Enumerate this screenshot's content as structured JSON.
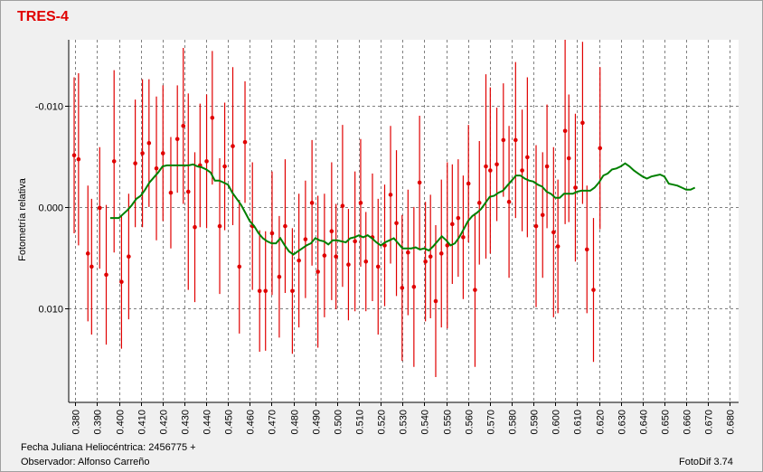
{
  "title": "TRES-4",
  "footer": {
    "xlabel": "Fecha Juliana Heliocéntrica: 2456775 +",
    "observer": "Observador: Alfonso Carreño",
    "software": "FotoDif 3.74"
  },
  "colors": {
    "points": "#e00000",
    "errorbars": "#e00000",
    "fit": "#008000",
    "title": "#e00000"
  },
  "chart_data": {
    "type": "scatter",
    "title": "TRES-4",
    "xlabel": "Fecha Juliana Heliocéntrica: 2456775 +",
    "ylabel": "Fotometría relativa",
    "xlim": [
      0.377,
      0.684
    ],
    "ylim": [
      -0.0165,
      0.0193
    ],
    "y_inverted": true,
    "grid": true,
    "xticks": [
      "0.380",
      "0.390",
      "0.400",
      "0.410",
      "0.420",
      "0.430",
      "0.440",
      "0.450",
      "0.460",
      "0.470",
      "0.480",
      "0.490",
      "0.500",
      "0.510",
      "0.520",
      "0.530",
      "0.540",
      "0.550",
      "0.560",
      "0.570",
      "0.580",
      "0.590",
      "0.600",
      "0.610",
      "0.620",
      "0.630",
      "0.640",
      "0.650",
      "0.660",
      "0.670",
      "0.680"
    ],
    "yticks": [
      "-0.010",
      "0.000",
      "0.010"
    ],
    "series": [
      {
        "values": [
          [
            0.3795,
            -0.0051,
            0.0077
          ],
          [
            0.3815,
            -0.0047,
            0.0085
          ],
          [
            0.3858,
            0.0046,
            0.0067
          ],
          [
            0.3875,
            0.0059,
            0.0067
          ],
          [
            0.3912,
            0.0001,
            0.006
          ],
          [
            0.3942,
            0.0067,
            0.0069
          ],
          [
            0.3978,
            -0.0045,
            0.009
          ],
          [
            0.4012,
            0.0074,
            0.0066
          ],
          [
            0.4045,
            0.0049,
            0.0062
          ],
          [
            0.4075,
            -0.0043,
            0.0063
          ],
          [
            0.4108,
            -0.0053,
            0.0073
          ],
          [
            0.4138,
            -0.0063,
            0.0063
          ],
          [
            0.4172,
            -0.0038,
            0.0071
          ],
          [
            0.4202,
            -0.0053,
            0.0067
          ],
          [
            0.4238,
            -0.0014,
            0.0055
          ],
          [
            0.4268,
            -0.0067,
            0.0053
          ],
          [
            0.4295,
            -0.008,
            0.0077
          ],
          [
            0.4318,
            -0.0015,
            0.0097
          ],
          [
            0.4348,
            0.002,
            0.0074
          ],
          [
            0.4372,
            -0.0041,
            0.0061
          ],
          [
            0.4402,
            -0.0045,
            0.0066
          ],
          [
            0.4428,
            -0.0088,
            0.0066
          ],
          [
            0.4462,
            0.0019,
            0.0067
          ],
          [
            0.4485,
            -0.004,
            0.0063
          ],
          [
            0.4522,
            -0.006,
            0.0078
          ],
          [
            0.4552,
            0.0059,
            0.0066
          ],
          [
            0.4578,
            -0.0064,
            0.006
          ],
          [
            0.4612,
            0.0019,
            0.0063
          ],
          [
            0.4645,
            0.0083,
            0.006
          ],
          [
            0.4672,
            0.0083,
            0.0059
          ],
          [
            0.4702,
            0.0026,
            0.0061
          ],
          [
            0.4735,
            0.0069,
            0.006
          ],
          [
            0.4762,
            0.0019,
            0.0066
          ],
          [
            0.4795,
            0.0083,
            0.0062
          ],
          [
            0.4825,
            0.0053,
            0.0066
          ],
          [
            0.4855,
            0.0032,
            0.0058
          ],
          [
            0.4885,
            -0.0004,
            0.0062
          ],
          [
            0.4912,
            0.0064,
            0.0075
          ],
          [
            0.4942,
            0.0048,
            0.0061
          ],
          [
            0.4975,
            0.0024,
            0.0068
          ],
          [
            0.4995,
            0.0049,
            0.0052
          ],
          [
            0.5025,
            -0.0001,
            0.008
          ],
          [
            0.5052,
            0.0057,
            0.0055
          ],
          [
            0.5082,
            0.0034,
            0.0069
          ],
          [
            0.5108,
            -0.0004,
            0.0063
          ],
          [
            0.5132,
            0.0054,
            0.0049
          ],
          [
            0.5162,
            0.003,
            0.0063
          ],
          [
            0.5188,
            0.0059,
            0.0067
          ],
          [
            0.5218,
            0.0038,
            0.006
          ],
          [
            0.5245,
            -0.0012,
            0.0068
          ],
          [
            0.5272,
            0.0016,
            0.0072
          ],
          [
            0.5298,
            0.008,
            0.0072
          ],
          [
            0.5325,
            0.0045,
            0.0062
          ],
          [
            0.5352,
            0.0079,
            0.0079
          ],
          [
            0.5378,
            -0.0024,
            0.0066
          ],
          [
            0.5405,
            0.0054,
            0.0059
          ],
          [
            0.5428,
            0.0049,
            0.0061
          ],
          [
            0.5452,
            0.0093,
            0.0075
          ],
          [
            0.5478,
            0.0046,
            0.0073
          ],
          [
            0.5505,
            0.0038,
            0.0082
          ],
          [
            0.5528,
            0.0017,
            0.0059
          ],
          [
            0.5555,
            0.0011,
            0.0058
          ],
          [
            0.5578,
            0.003,
            0.0061
          ],
          [
            0.5602,
            -0.0023,
            0.0058
          ],
          [
            0.5632,
            0.0082,
            0.0076
          ],
          [
            0.5652,
            -0.0004,
            0.0061
          ],
          [
            0.5682,
            -0.004,
            0.0091
          ],
          [
            0.5702,
            -0.0036,
            0.0082
          ],
          [
            0.5732,
            -0.0042,
            0.0056
          ],
          [
            0.5762,
            -0.0066,
            0.0056
          ],
          [
            0.5788,
            -0.0005,
            0.0075
          ],
          [
            0.5818,
            -0.0066,
            0.0077
          ],
          [
            0.5848,
            -0.0036,
            0.006
          ],
          [
            0.5872,
            -0.0049,
            0.0079
          ],
          [
            0.5912,
            0.0019,
            0.008
          ],
          [
            0.5942,
            0.0008,
            0.0062
          ],
          [
            0.5962,
            -0.004,
            0.0061
          ],
          [
            0.5992,
            0.0025,
            0.0084
          ],
          [
            0.6012,
            0.0039,
            0.0066
          ],
          [
            0.6045,
            -0.0075,
            0.0092
          ],
          [
            0.6062,
            -0.0048,
            0.0063
          ],
          [
            0.6092,
            -0.0019,
            0.0073
          ],
          [
            0.6125,
            -0.0083,
            0.008
          ],
          [
            0.6145,
            0.0042,
            0.0063
          ],
          [
            0.6175,
            0.0082,
            0.0071
          ],
          [
            0.6205,
            -0.0058,
            0.008
          ]
        ]
      },
      {
        "name": "fit",
        "values": [
          [
            0.396,
            0.0011
          ],
          [
            0.398,
            0.0011
          ],
          [
            0.4,
            0.0011
          ],
          [
            0.402,
            0.0007
          ],
          [
            0.404,
            0.0003
          ],
          [
            0.406,
            -0.0002
          ],
          [
            0.408,
            -0.0008
          ],
          [
            0.41,
            -0.0011
          ],
          [
            0.412,
            -0.0017
          ],
          [
            0.414,
            -0.0024
          ],
          [
            0.416,
            -0.0029
          ],
          [
            0.418,
            -0.0034
          ],
          [
            0.42,
            -0.004
          ],
          [
            0.422,
            -0.0041
          ],
          [
            0.424,
            -0.0041
          ],
          [
            0.426,
            -0.0041
          ],
          [
            0.428,
            -0.0041
          ],
          [
            0.43,
            -0.0041
          ],
          [
            0.432,
            -0.0041
          ],
          [
            0.434,
            -0.0042
          ],
          [
            0.436,
            -0.004
          ],
          [
            0.438,
            -0.0039
          ],
          [
            0.44,
            -0.0037
          ],
          [
            0.442,
            -0.0034
          ],
          [
            0.444,
            -0.0026
          ],
          [
            0.446,
            -0.0026
          ],
          [
            0.448,
            -0.0024
          ],
          [
            0.45,
            -0.0022
          ],
          [
            0.452,
            -0.0014
          ],
          [
            0.454,
            -0.0008
          ],
          [
            0.456,
            -0.0002
          ],
          [
            0.458,
            0.0006
          ],
          [
            0.46,
            0.0014
          ],
          [
            0.462,
            0.0019
          ],
          [
            0.464,
            0.0026
          ],
          [
            0.466,
            0.0031
          ],
          [
            0.468,
            0.0034
          ],
          [
            0.47,
            0.0036
          ],
          [
            0.472,
            0.0036
          ],
          [
            0.474,
            0.0031
          ],
          [
            0.476,
            0.0038
          ],
          [
            0.478,
            0.0044
          ],
          [
            0.48,
            0.0047
          ],
          [
            0.482,
            0.0044
          ],
          [
            0.484,
            0.0041
          ],
          [
            0.486,
            0.0038
          ],
          [
            0.488,
            0.0036
          ],
          [
            0.49,
            0.0031
          ],
          [
            0.492,
            0.0033
          ],
          [
            0.494,
            0.0034
          ],
          [
            0.496,
            0.0037
          ],
          [
            0.498,
            0.0033
          ],
          [
            0.5,
            0.0033
          ],
          [
            0.502,
            0.0034
          ],
          [
            0.504,
            0.0035
          ],
          [
            0.506,
            0.0031
          ],
          [
            0.508,
            0.003
          ],
          [
            0.51,
            0.0028
          ],
          [
            0.512,
            0.003
          ],
          [
            0.514,
            0.0028
          ],
          [
            0.516,
            0.0031
          ],
          [
            0.518,
            0.0035
          ],
          [
            0.52,
            0.0038
          ],
          [
            0.522,
            0.0035
          ],
          [
            0.524,
            0.0033
          ],
          [
            0.526,
            0.0031
          ],
          [
            0.528,
            0.0036
          ],
          [
            0.53,
            0.0041
          ],
          [
            0.532,
            0.0041
          ],
          [
            0.534,
            0.0041
          ],
          [
            0.536,
            0.004
          ],
          [
            0.538,
            0.0042
          ],
          [
            0.54,
            0.0041
          ],
          [
            0.542,
            0.0043
          ],
          [
            0.544,
            0.0039
          ],
          [
            0.546,
            0.0034
          ],
          [
            0.548,
            0.0029
          ],
          [
            0.55,
            0.0033
          ],
          [
            0.552,
            0.0038
          ],
          [
            0.554,
            0.0036
          ],
          [
            0.556,
            0.003
          ],
          [
            0.558,
            0.0022
          ],
          [
            0.56,
            0.0014
          ],
          [
            0.562,
            0.0009
          ],
          [
            0.564,
            0.0006
          ],
          [
            0.566,
            0.0002
          ],
          [
            0.568,
            -0.0004
          ],
          [
            0.57,
            -0.001
          ],
          [
            0.572,
            -0.0011
          ],
          [
            0.574,
            -0.0014
          ],
          [
            0.576,
            -0.0016
          ],
          [
            0.578,
            -0.0021
          ],
          [
            0.58,
            -0.0026
          ],
          [
            0.582,
            -0.0031
          ],
          [
            0.584,
            -0.0031
          ],
          [
            0.586,
            -0.0028
          ],
          [
            0.588,
            -0.0026
          ],
          [
            0.59,
            -0.0025
          ],
          [
            0.592,
            -0.0022
          ],
          [
            0.594,
            -0.002
          ],
          [
            0.596,
            -0.0015
          ],
          [
            0.598,
            -0.0013
          ],
          [
            0.6,
            -0.0009
          ],
          [
            0.602,
            -0.0009
          ],
          [
            0.604,
            -0.0013
          ],
          [
            0.606,
            -0.0013
          ],
          [
            0.608,
            -0.0013
          ],
          [
            0.61,
            -0.0015
          ],
          [
            0.612,
            -0.0016
          ],
          [
            0.614,
            -0.0016
          ],
          [
            0.616,
            -0.0016
          ],
          [
            0.618,
            -0.0019
          ],
          [
            0.62,
            -0.0024
          ],
          [
            0.622,
            -0.0031
          ],
          [
            0.624,
            -0.0033
          ],
          [
            0.626,
            -0.0037
          ],
          [
            0.628,
            -0.0038
          ],
          [
            0.63,
            -0.004
          ],
          [
            0.632,
            -0.0043
          ],
          [
            0.634,
            -0.004
          ],
          [
            0.636,
            -0.0036
          ],
          [
            0.638,
            -0.0033
          ],
          [
            0.64,
            -0.003
          ],
          [
            0.642,
            -0.0028
          ],
          [
            0.644,
            -0.003
          ],
          [
            0.646,
            -0.0031
          ],
          [
            0.648,
            -0.0032
          ],
          [
            0.65,
            -0.003
          ],
          [
            0.652,
            -0.0023
          ],
          [
            0.654,
            -0.0022
          ],
          [
            0.656,
            -0.0021
          ],
          [
            0.658,
            -0.0019
          ],
          [
            0.66,
            -0.0017
          ],
          [
            0.662,
            -0.0017
          ],
          [
            0.664,
            -0.0019
          ]
        ]
      }
    ]
  }
}
